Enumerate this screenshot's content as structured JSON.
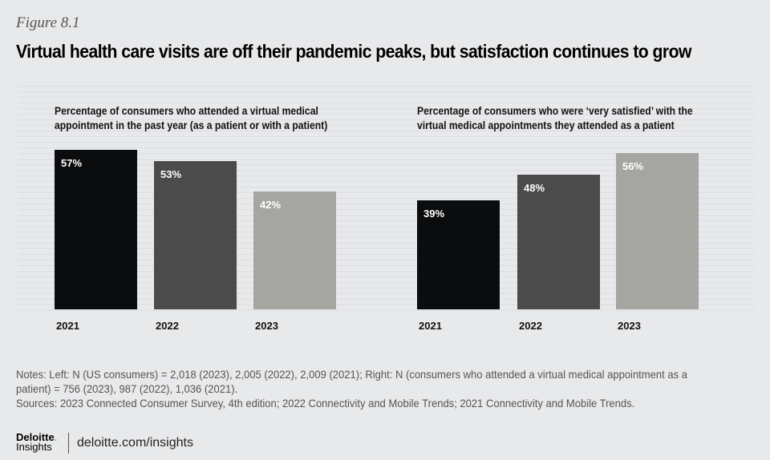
{
  "figure_label": "Figure 8.1",
  "title": "Virtual health care visits are off their pandemic peaks, but satisfaction continues to grow",
  "chart_data": [
    {
      "type": "bar",
      "title": "Percentage of consumers who attended a virtual medical appointment in the past year (as a patient or with a patient)",
      "categories": [
        "2021",
        "2022",
        "2023"
      ],
      "values": [
        57,
        53,
        42
      ],
      "labels": [
        "57%",
        "53%",
        "42%"
      ],
      "colors": [
        "#0b0c0d",
        "#4b4b4b",
        "#a5a5a2"
      ],
      "ylim": [
        0,
        60
      ]
    },
    {
      "type": "bar",
      "title": "Percentage of consumers who were ‘very satisfied’ with the virtual medical appointments they attended as a patient",
      "categories": [
        "2021",
        "2022",
        "2023"
      ],
      "values": [
        39,
        48,
        56
      ],
      "labels": [
        "39%",
        "48%",
        "56%"
      ],
      "colors": [
        "#0b0c0d",
        "#4b4b4b",
        "#a5a5a2"
      ],
      "ylim": [
        0,
        60
      ]
    }
  ],
  "notes": "Notes: Left: N (US consumers) = 2,018 (2023), 2,005 (2022), 2,009 (2021); Right: N (consumers who attended a virtual medical appointment as a patient) = 756 (2023), 987 (2022), 1,036 (2021).",
  "sources": "Sources: 2023 Connected Consumer Survey, 4th edition; 2022 Connectivity and Mobile Trends; 2021 Connectivity and Mobile Trends.",
  "logo": {
    "brand": "Deloitte",
    "sub": "Insights"
  },
  "url": "deloitte.com/insights"
}
